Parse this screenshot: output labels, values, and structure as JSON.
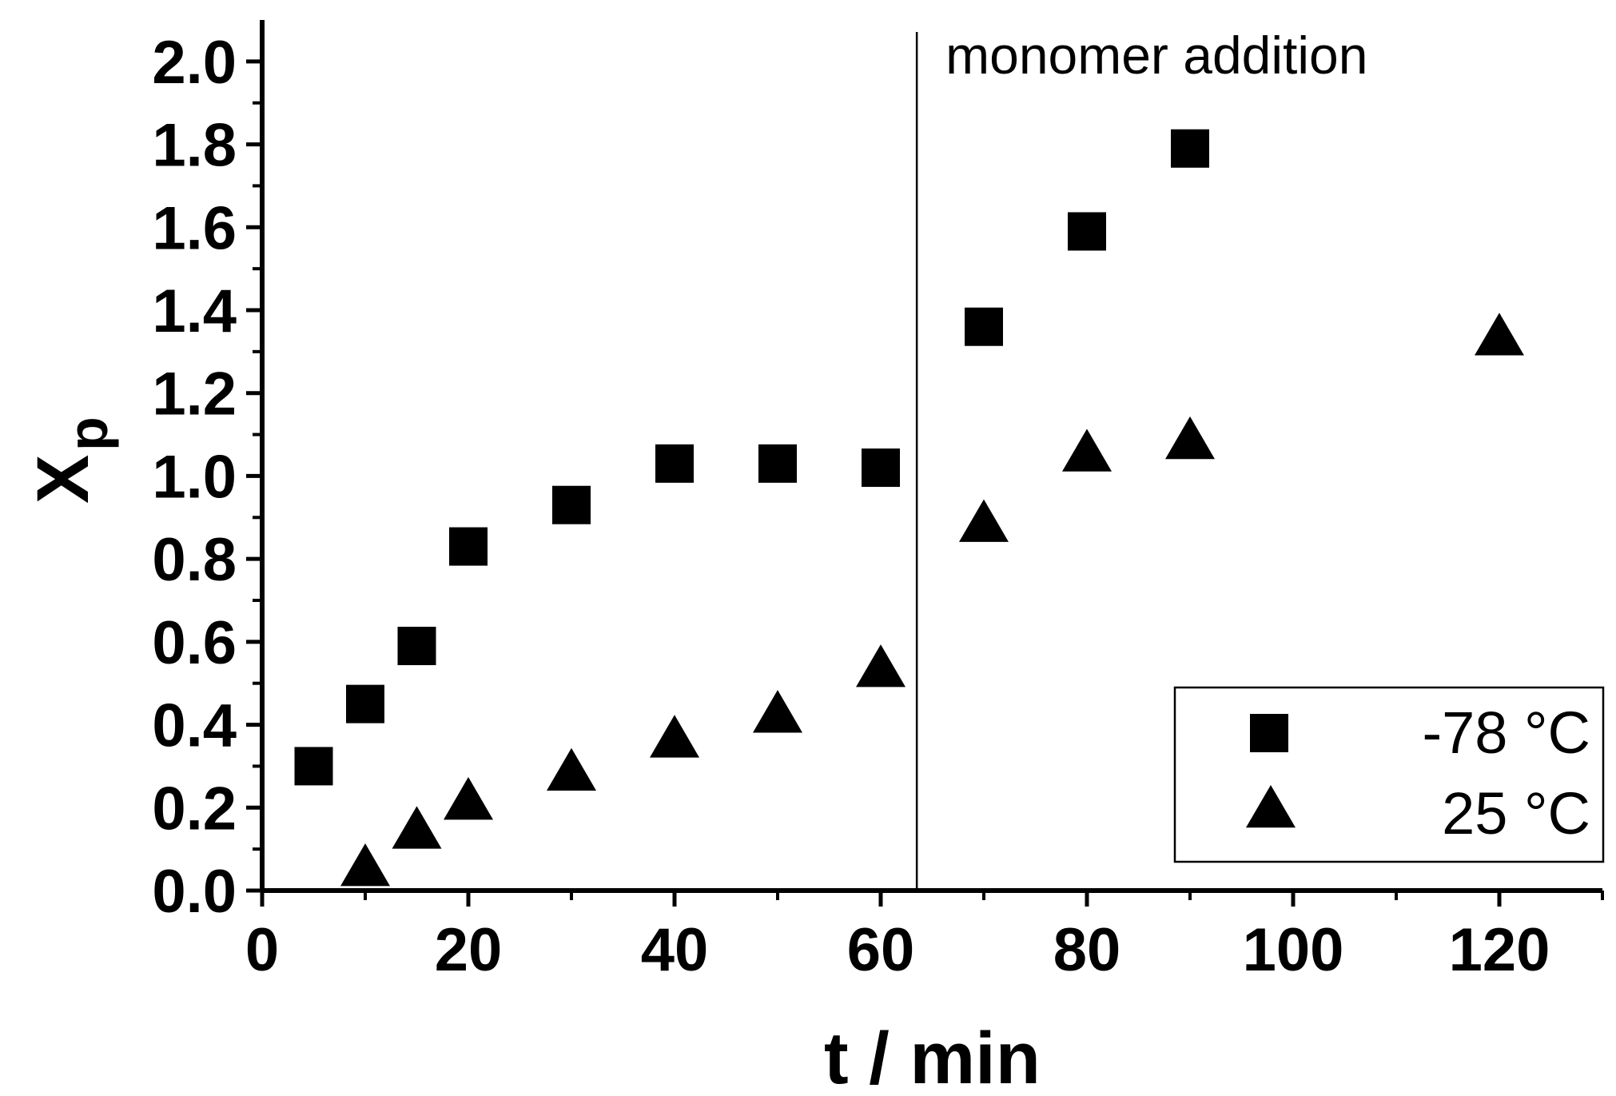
{
  "chart_data": {
    "type": "scatter",
    "xlabel": "t / min",
    "ylabel_main": "X",
    "ylabel_sub": "p",
    "xlim": [
      0,
      130
    ],
    "ylim": [
      0,
      2.1
    ],
    "xticks": [
      0,
      20,
      40,
      60,
      80,
      100,
      120
    ],
    "yticks": [
      0.0,
      0.2,
      0.4,
      0.6,
      0.8,
      1.0,
      1.2,
      1.4,
      1.6,
      1.8,
      2.0
    ],
    "xtick_labels": [
      "0",
      "20",
      "40",
      "60",
      "80",
      "100",
      "120"
    ],
    "ytick_labels": [
      "0.0",
      "0.2",
      "0.4",
      "0.6",
      "0.8",
      "1.0",
      "1.2",
      "1.4",
      "1.6",
      "1.8",
      "2.0"
    ],
    "grid": false,
    "legend_position": "bottom-right",
    "annotation": {
      "text": "monomer addition",
      "x": 63.5
    },
    "series": [
      {
        "name": "-78 °C",
        "marker": "square",
        "x": [
          5,
          10,
          15,
          20,
          30,
          40,
          50,
          60,
          70,
          80,
          90
        ],
        "y": [
          0.3,
          0.45,
          0.59,
          0.83,
          0.93,
          1.03,
          1.03,
          1.02,
          1.36,
          1.59,
          1.79
        ]
      },
      {
        "name": "25 °C",
        "marker": "triangle",
        "x": [
          10,
          15,
          20,
          30,
          40,
          50,
          60,
          70,
          80,
          90,
          120
        ],
        "y": [
          0.05,
          0.14,
          0.21,
          0.28,
          0.36,
          0.42,
          0.53,
          0.88,
          1.05,
          1.08,
          1.33
        ]
      }
    ]
  }
}
